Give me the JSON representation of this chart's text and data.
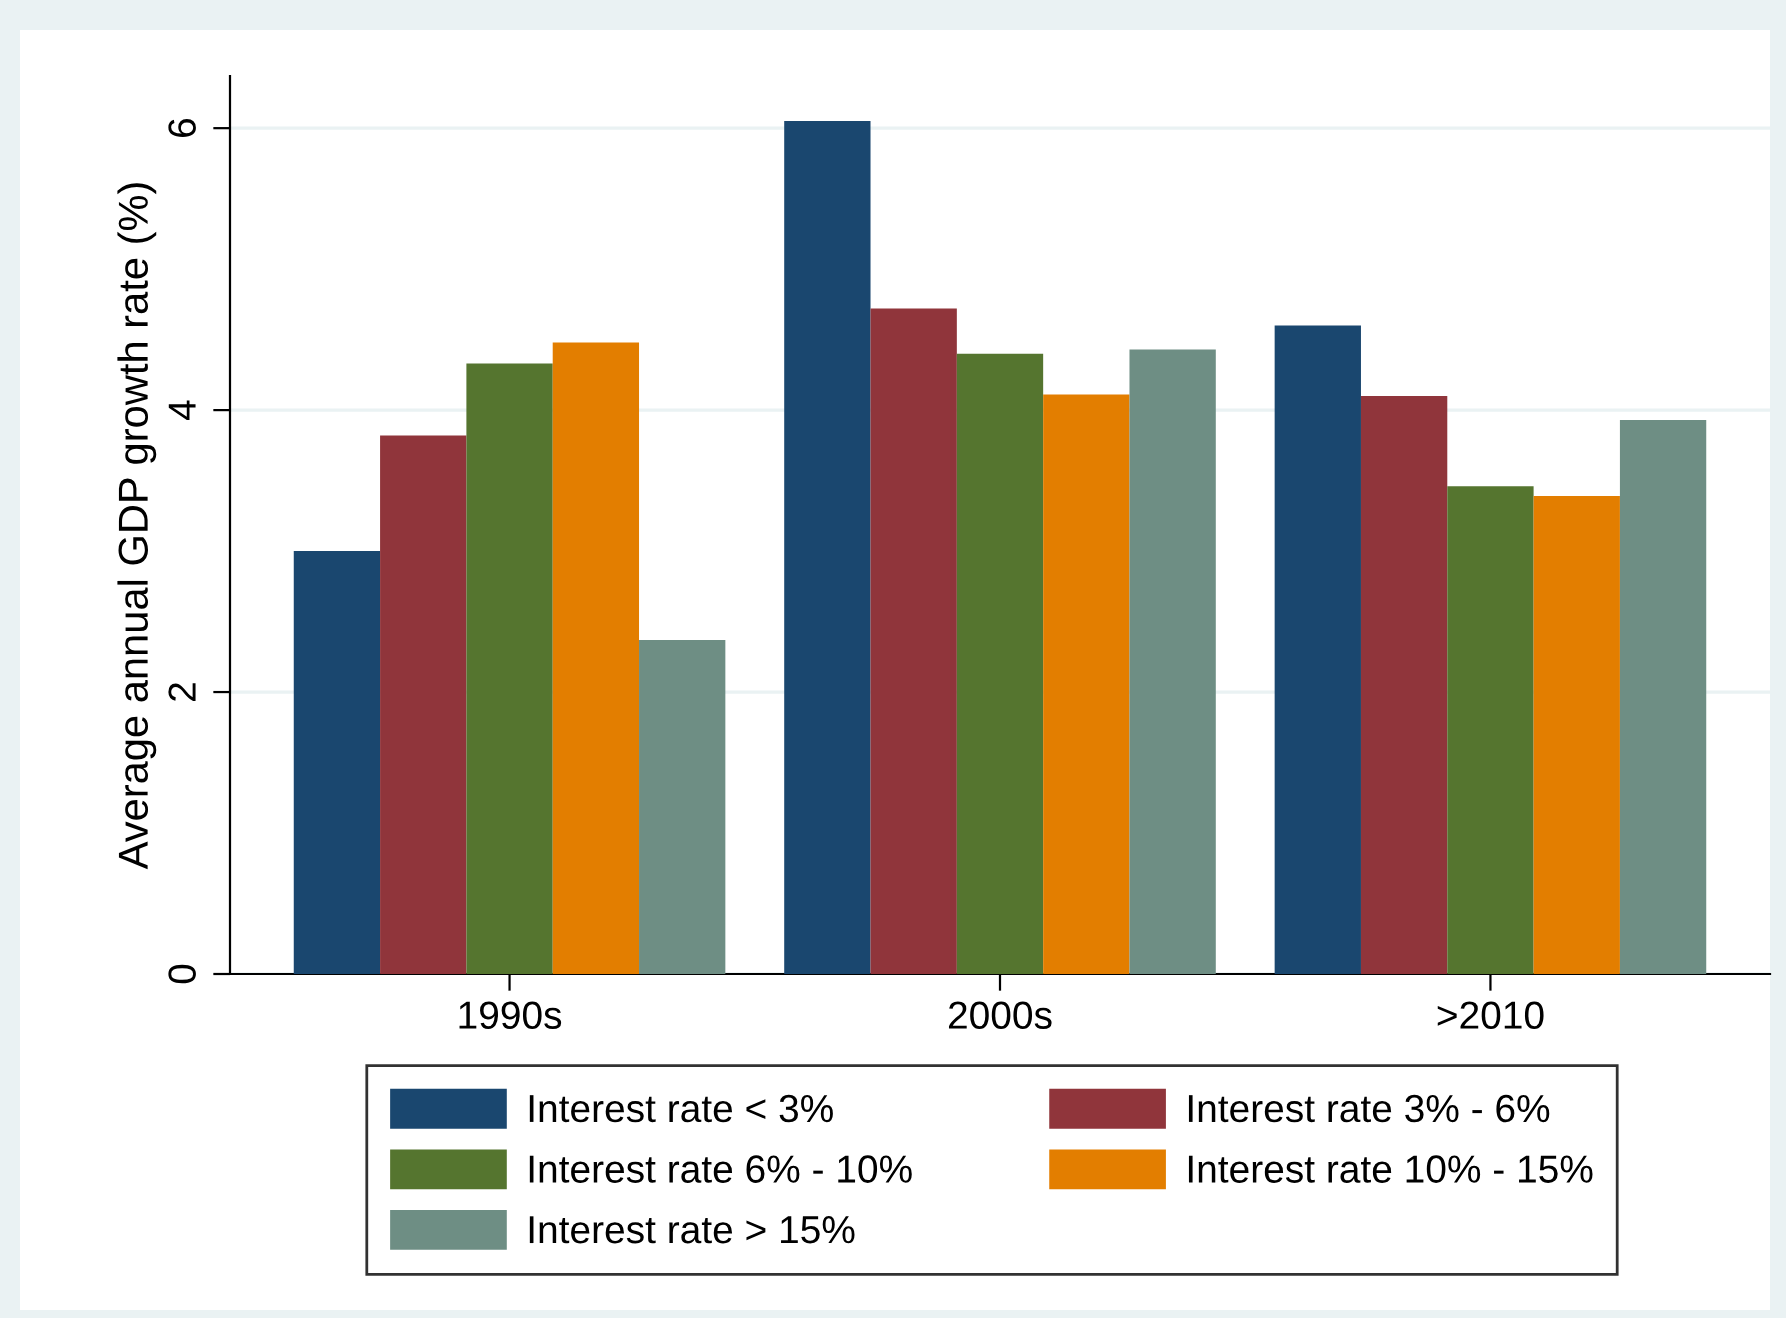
{
  "chart_data": {
    "type": "bar",
    "ylabel": "Average annual GDP growth rate (%)",
    "categories": [
      "1990s",
      "2000s",
      ">2010"
    ],
    "series": [
      {
        "name": "Interest rate < 3%",
        "color": "#1a476f",
        "values": [
          3.0,
          6.05,
          4.6
        ]
      },
      {
        "name": "Interest rate 3% - 6%",
        "color": "#90353b",
        "values": [
          3.82,
          4.72,
          4.1
        ]
      },
      {
        "name": "Interest rate 6% - 10%",
        "color": "#55752f",
        "values": [
          4.33,
          4.4,
          3.46
        ]
      },
      {
        "name": "Interest rate 10% - 15%",
        "color": "#e37e00",
        "values": [
          4.48,
          4.11,
          3.39
        ]
      },
      {
        "name": "Interest rate > 15%",
        "color": "#6e8e84",
        "values": [
          2.37,
          4.43,
          3.93
        ]
      }
    ],
    "ylim": [
      0,
      6.37
    ],
    "yticks": [
      0,
      2,
      4,
      6
    ],
    "grid": "y",
    "legend": "bottom"
  }
}
